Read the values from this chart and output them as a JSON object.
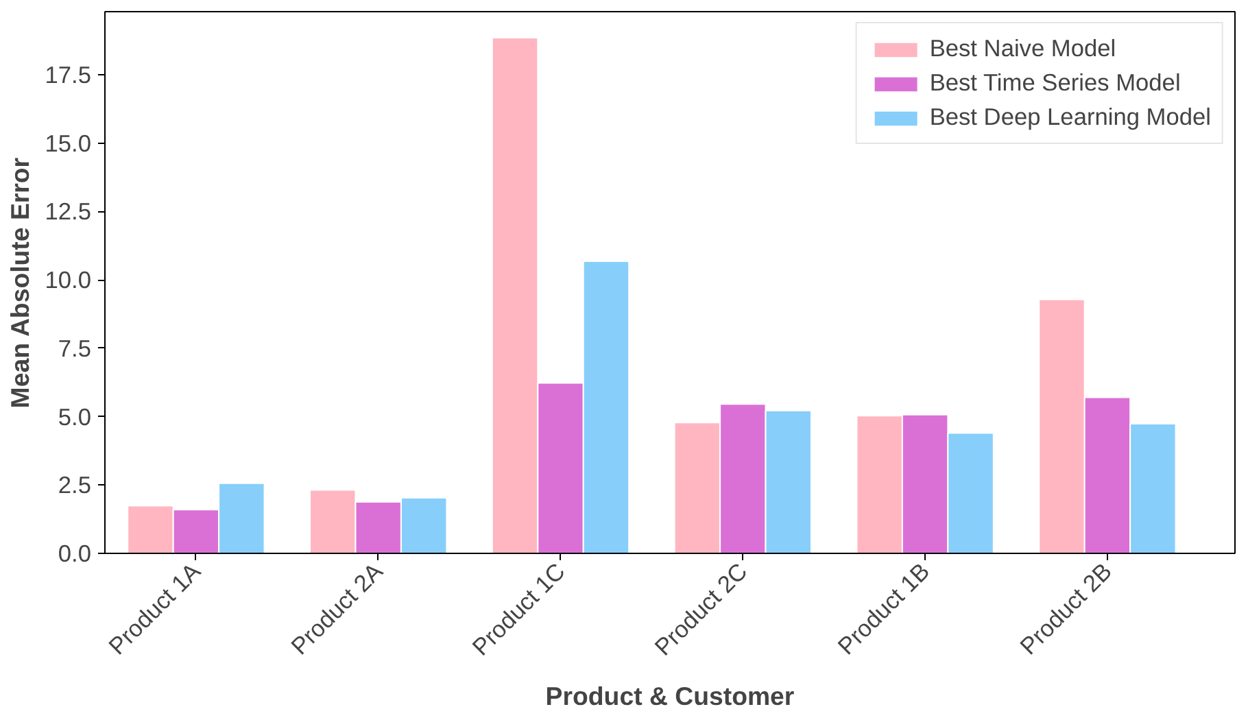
{
  "chart_data": {
    "type": "bar",
    "xlabel": "Product & Customer",
    "ylabel": "Mean Absolute Error",
    "categories": [
      "Product 1A",
      "Product 2A",
      "Product 1C",
      "Product 2C",
      "Product 1B",
      "Product 2B"
    ],
    "series": [
      {
        "name": "Best Naive Model",
        "color": "#ffb6c1",
        "values": [
          1.74,
          2.32,
          18.85,
          4.78,
          5.03,
          9.28
        ]
      },
      {
        "name": "Best Time Series Model",
        "color": "#da70d6",
        "values": [
          1.6,
          1.88,
          6.23,
          5.46,
          5.07,
          5.7
        ]
      },
      {
        "name": "Best Deep Learning Model",
        "color": "#87cefa",
        "values": [
          2.56,
          2.03,
          10.68,
          5.22,
          4.4,
          4.74
        ]
      }
    ],
    "ylim": [
      0,
      19.8
    ],
    "yticks": [
      {
        "value": 0,
        "label": "0.0"
      },
      {
        "value": 2.5,
        "label": "2.5"
      },
      {
        "value": 5,
        "label": "5.0"
      },
      {
        "value": 7.5,
        "label": "7.5"
      },
      {
        "value": 10,
        "label": "10.0"
      },
      {
        "value": 12.5,
        "label": "12.5"
      },
      {
        "value": 15,
        "label": "15.0"
      },
      {
        "value": 17.5,
        "label": "17.5"
      }
    ],
    "grid": false,
    "legend": "top right"
  }
}
